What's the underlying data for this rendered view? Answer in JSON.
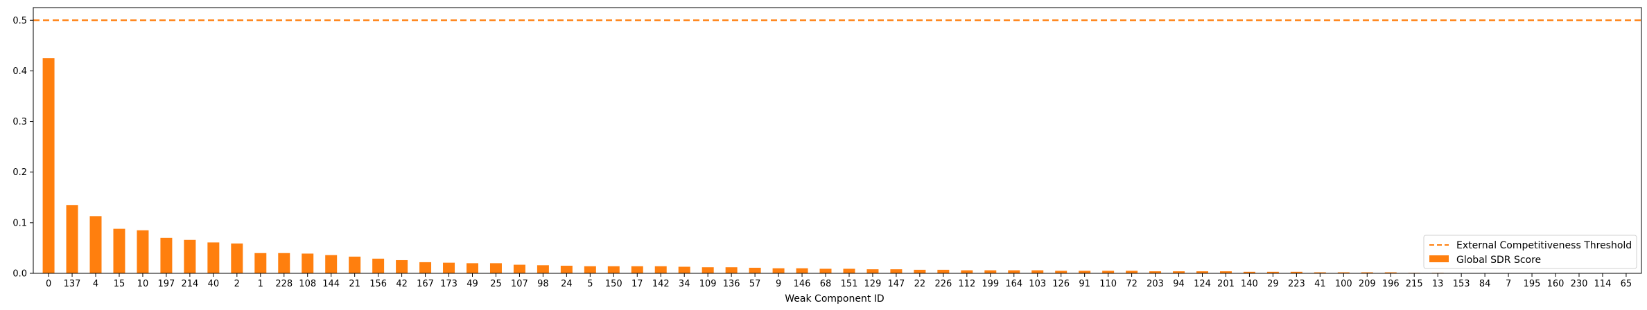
{
  "chart_data": {
    "type": "bar",
    "title": "",
    "xlabel": "Weak Component ID",
    "ylabel": "",
    "ylim": [
      0,
      0.525
    ],
    "yticks": [
      "0.0",
      "0.1",
      "0.2",
      "0.3",
      "0.4",
      "0.5"
    ],
    "grid": false,
    "legend_position": "lower-right",
    "categories": [
      "0",
      "137",
      "4",
      "15",
      "10",
      "197",
      "214",
      "40",
      "2",
      "1",
      "228",
      "108",
      "144",
      "21",
      "156",
      "42",
      "167",
      "173",
      "49",
      "25",
      "107",
      "98",
      "24",
      "5",
      "150",
      "17",
      "142",
      "34",
      "109",
      "136",
      "57",
      "9",
      "146",
      "68",
      "151",
      "129",
      "147",
      "22",
      "226",
      "112",
      "199",
      "164",
      "103",
      "126",
      "91",
      "110",
      "72",
      "203",
      "94",
      "124",
      "201",
      "140",
      "29",
      "223",
      "41",
      "100",
      "209",
      "196",
      "215",
      "13",
      "153",
      "84",
      "7",
      "195",
      "160",
      "230",
      "114",
      "65"
    ],
    "series": [
      {
        "name": "Global SDR Score",
        "color": "#ff7f0e",
        "values": [
          0.425,
          0.135,
          0.113,
          0.088,
          0.085,
          0.07,
          0.066,
          0.061,
          0.059,
          0.04,
          0.04,
          0.039,
          0.036,
          0.033,
          0.029,
          0.026,
          0.022,
          0.021,
          0.02,
          0.02,
          0.017,
          0.016,
          0.015,
          0.014,
          0.014,
          0.014,
          0.014,
          0.013,
          0.012,
          0.012,
          0.011,
          0.01,
          0.01,
          0.009,
          0.009,
          0.008,
          0.008,
          0.007,
          0.007,
          0.006,
          0.006,
          0.006,
          0.006,
          0.005,
          0.005,
          0.005,
          0.005,
          0.004,
          0.004,
          0.004,
          0.004,
          0.003,
          0.003,
          0.003,
          0.002,
          0.002,
          0.002,
          0.002,
          0.001,
          0.001,
          0.0,
          0.0,
          0.0,
          0.0,
          0.0,
          0.0,
          0.0,
          0.0
        ]
      }
    ],
    "threshold": {
      "name": "External Competitiveness Threshold",
      "value": 0.5,
      "color": "#ff7f0e",
      "style": "dashed"
    },
    "legend": [
      "External Competitiveness Threshold",
      "Global SDR Score"
    ]
  }
}
